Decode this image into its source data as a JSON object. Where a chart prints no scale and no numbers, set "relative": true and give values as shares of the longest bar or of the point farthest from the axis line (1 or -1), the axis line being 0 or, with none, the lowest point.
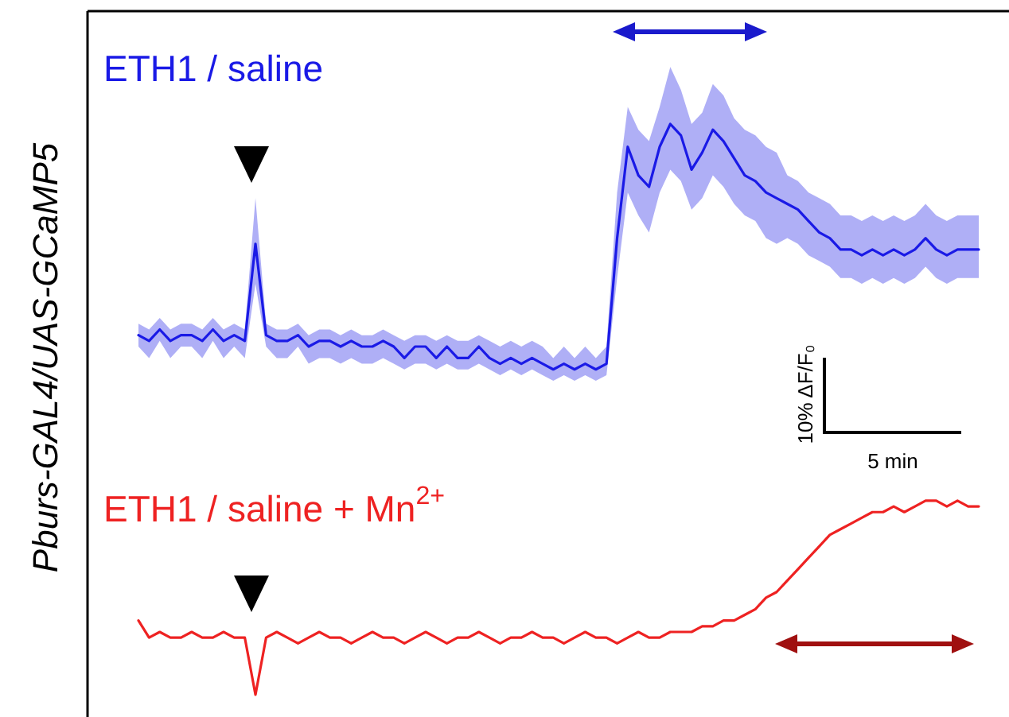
{
  "chart_data": {
    "type": "line",
    "relative": true,
    "ylabel": "Pburs-GAL4/UAS-GCaMP5",
    "categories": [
      null,
      null,
      null,
      null,
      null,
      null,
      null,
      null,
      null,
      null,
      null,
      null,
      null,
      null,
      null,
      null,
      null,
      null,
      null,
      null,
      null,
      null,
      null,
      null,
      null,
      null,
      null,
      null,
      null,
      null,
      null,
      null,
      null,
      null,
      null,
      null,
      null,
      null,
      null,
      null,
      null,
      null,
      null,
      null,
      null,
      null,
      null,
      null,
      null,
      null,
      null,
      null,
      null,
      null,
      null,
      null,
      null,
      null,
      null,
      null,
      null,
      null,
      null,
      null,
      null,
      null,
      null,
      null,
      null,
      null,
      null,
      null,
      null,
      null,
      null,
      null,
      null,
      null,
      null,
      null
    ],
    "series": [
      {
        "name": "ETH1 / saline",
        "color": "#1a1ae6",
        "values": [
          0.63,
          0.62,
          0.64,
          0.62,
          0.63,
          0.63,
          0.62,
          0.64,
          0.62,
          0.63,
          0.62,
          0.79,
          0.63,
          0.62,
          0.62,
          0.63,
          0.61,
          0.62,
          0.62,
          0.61,
          0.62,
          0.61,
          0.61,
          0.62,
          0.61,
          0.59,
          0.61,
          0.61,
          0.59,
          0.61,
          0.59,
          0.59,
          0.61,
          0.59,
          0.58,
          0.59,
          0.58,
          0.59,
          0.58,
          0.57,
          0.58,
          0.57,
          0.58,
          0.57,
          0.58,
          0.8,
          0.96,
          0.91,
          0.89,
          0.96,
          1.0,
          0.98,
          0.92,
          0.95,
          0.99,
          0.97,
          0.94,
          0.91,
          0.9,
          0.88,
          0.87,
          0.86,
          0.85,
          0.83,
          0.81,
          0.8,
          0.78,
          0.78,
          0.77,
          0.78,
          0.77,
          0.78,
          0.77,
          0.78,
          0.8,
          0.78,
          0.77,
          0.78,
          0.78,
          0.78
        ],
        "lower": [
          0.61,
          0.59,
          0.62,
          0.59,
          0.61,
          0.61,
          0.59,
          0.62,
          0.59,
          0.61,
          0.59,
          0.72,
          0.61,
          0.59,
          0.59,
          0.61,
          0.58,
          0.59,
          0.59,
          0.58,
          0.59,
          0.58,
          0.58,
          0.59,
          0.58,
          0.57,
          0.58,
          0.58,
          0.57,
          0.58,
          0.57,
          0.57,
          0.58,
          0.57,
          0.56,
          0.57,
          0.56,
          0.57,
          0.56,
          0.55,
          0.56,
          0.55,
          0.56,
          0.55,
          0.56,
          0.73,
          0.88,
          0.84,
          0.81,
          0.88,
          0.92,
          0.9,
          0.85,
          0.87,
          0.91,
          0.89,
          0.86,
          0.84,
          0.83,
          0.8,
          0.79,
          0.8,
          0.79,
          0.77,
          0.76,
          0.75,
          0.73,
          0.73,
          0.72,
          0.73,
          0.72,
          0.73,
          0.72,
          0.73,
          0.75,
          0.73,
          0.72,
          0.73,
          0.73,
          0.73
        ],
        "upper": [
          0.65,
          0.64,
          0.66,
          0.64,
          0.65,
          0.65,
          0.64,
          0.66,
          0.64,
          0.65,
          0.64,
          0.87,
          0.65,
          0.64,
          0.64,
          0.65,
          0.63,
          0.64,
          0.64,
          0.63,
          0.64,
          0.63,
          0.63,
          0.64,
          0.63,
          0.62,
          0.63,
          0.63,
          0.62,
          0.63,
          0.62,
          0.62,
          0.63,
          0.62,
          0.61,
          0.62,
          0.61,
          0.62,
          0.61,
          0.59,
          0.61,
          0.59,
          0.61,
          0.59,
          0.61,
          0.88,
          1.03,
          0.99,
          0.97,
          1.03,
          1.1,
          1.06,
          1.0,
          1.02,
          1.07,
          1.05,
          1.01,
          0.99,
          0.98,
          0.96,
          0.95,
          0.91,
          0.9,
          0.88,
          0.87,
          0.86,
          0.84,
          0.84,
          0.83,
          0.84,
          0.83,
          0.84,
          0.83,
          0.84,
          0.86,
          0.84,
          0.83,
          0.84,
          0.84,
          0.84
        ]
      },
      {
        "name": "ETH1 / saline + Mn$^{2+}$",
        "color": "#ee2222",
        "values": [
          0.13,
          0.1,
          0.11,
          0.1,
          0.1,
          0.11,
          0.1,
          0.1,
          0.11,
          0.1,
          0.1,
          0.0,
          0.1,
          0.11,
          0.1,
          0.09,
          0.1,
          0.11,
          0.1,
          0.1,
          0.09,
          0.1,
          0.11,
          0.1,
          0.1,
          0.09,
          0.1,
          0.11,
          0.1,
          0.09,
          0.1,
          0.1,
          0.11,
          0.1,
          0.09,
          0.1,
          0.1,
          0.11,
          0.1,
          0.1,
          0.09,
          0.1,
          0.11,
          0.1,
          0.1,
          0.09,
          0.1,
          0.11,
          0.1,
          0.1,
          0.11,
          0.11,
          0.11,
          0.12,
          0.12,
          0.13,
          0.13,
          0.14,
          0.15,
          0.17,
          0.18,
          0.2,
          0.22,
          0.24,
          0.26,
          0.28,
          0.29,
          0.3,
          0.31,
          0.32,
          0.32,
          0.33,
          0.32,
          0.33,
          0.34,
          0.34,
          0.33,
          0.34,
          0.33,
          0.33
        ]
      }
    ],
    "annotations": [
      "10% ΔF/F₀",
      "5 min"
    ]
  }
}
